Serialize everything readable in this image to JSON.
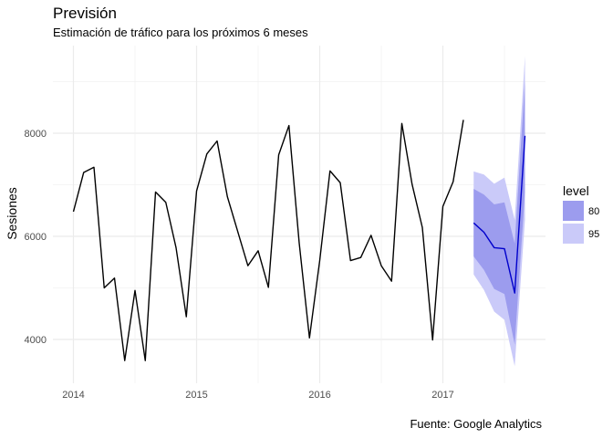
{
  "chart_data": {
    "type": "line",
    "title": "Previsión",
    "subtitle": "Estimación de tráfico para los próximos 6 meses",
    "caption": "Fuente: Google Analytics",
    "xlabel": "",
    "ylabel": "Sesiones",
    "x_ticks": [
      "2014",
      "2015",
      "2016",
      "2017"
    ],
    "y_ticks": [
      4000,
      6000,
      8000
    ],
    "ylim": [
      3150,
      9700
    ],
    "grid": true,
    "legend": {
      "title": "level",
      "position": "right",
      "items": [
        {
          "label": "80",
          "color": "#9c9cee"
        },
        {
          "label": "95",
          "color": "#cacaf9"
        }
      ]
    },
    "series": [
      {
        "line_color": "#000000",
        "x": [
          "2014-01",
          "2014-02",
          "2014-03",
          "2014-04",
          "2014-05",
          "2014-06",
          "2014-07",
          "2014-08",
          "2014-09",
          "2014-10",
          "2014-11",
          "2014-12",
          "2015-01",
          "2015-02",
          "2015-03",
          "2015-04",
          "2015-05",
          "2015-06",
          "2015-07",
          "2015-08",
          "2015-09",
          "2015-10",
          "2015-11",
          "2015-12",
          "2016-01",
          "2016-02",
          "2016-03",
          "2016-04",
          "2016-05",
          "2016-06",
          "2016-07",
          "2016-08",
          "2016-09",
          "2016-10",
          "2016-11",
          "2016-12",
          "2017-01",
          "2017-02",
          "2017-03"
        ],
        "values": [
          6480,
          7240,
          7340,
          5000,
          5190,
          3590,
          4950,
          3590,
          6860,
          6660,
          5780,
          4440,
          6880,
          7600,
          7850,
          6770,
          6100,
          5430,
          5720,
          5010,
          7580,
          8150,
          5870,
          4030,
          5530,
          7270,
          7040,
          5530,
          5590,
          6020,
          5430,
          5130,
          8190,
          7010,
          6170,
          3990,
          6580,
          7060,
          8260
        ]
      },
      {
        "line_color": "#0000cc",
        "x": [
          "2017-04",
          "2017-05",
          "2017-06",
          "2017-07",
          "2017-08",
          "2017-09"
        ],
        "values": [
          6260,
          6080,
          5780,
          5760,
          4900,
          7950
        ]
      }
    ],
    "forecast_intervals": {
      "x": [
        "2017-04",
        "2017-05",
        "2017-06",
        "2017-07",
        "2017-08",
        "2017-09"
      ],
      "lo95": [
        5260,
        4960,
        4540,
        4380,
        3480,
        6320
      ],
      "hi95": [
        7260,
        7200,
        7020,
        7140,
        6320,
        9500
      ],
      "lo80": [
        5610,
        5350,
        4980,
        4880,
        3900,
        6860
      ],
      "hi80": [
        6920,
        6810,
        6620,
        6660,
        5860,
        9020
      ]
    }
  }
}
